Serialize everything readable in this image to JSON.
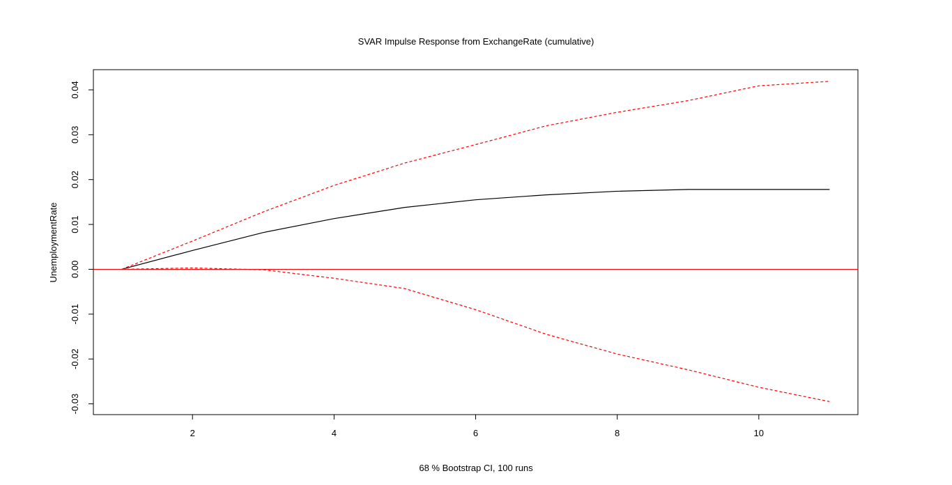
{
  "chart_data": {
    "type": "line",
    "title": "SVAR Impulse Response from ExchangeRate (cumulative)",
    "xlabel": "68 % Bootstrap CI,  100 runs",
    "ylabel": "UnemploymentRate",
    "xlim": [
      0.6,
      11.4
    ],
    "ylim": [
      -0.0324,
      0.0445
    ],
    "x": [
      1,
      2,
      3,
      4,
      5,
      6,
      7,
      8,
      9,
      10,
      11
    ],
    "xticks": [
      2,
      4,
      6,
      8,
      10
    ],
    "xtick_labels": [
      "2",
      "4",
      "6",
      "8",
      "10"
    ],
    "yticks": [
      -0.03,
      -0.02,
      -0.01,
      0.0,
      0.01,
      0.02,
      0.03,
      0.04
    ],
    "ytick_labels": [
      "-0.03",
      "-0.02",
      "-0.01",
      "0.00",
      "0.01",
      "0.02",
      "0.03",
      "0.04"
    ],
    "grid": false,
    "zero_line": {
      "value": 0.0,
      "color": "#ff0000"
    },
    "series": [
      {
        "values": [
          0.0,
          0.0042,
          0.0082,
          0.0113,
          0.0138,
          0.0155,
          0.0166,
          0.0174,
          0.0178,
          0.0178,
          0.0178
        ],
        "color": "#000000",
        "style": "solid"
      },
      {
        "values": [
          0.0,
          0.0063,
          0.0128,
          0.0187,
          0.0237,
          0.0278,
          0.032,
          0.035,
          0.0376,
          0.0409,
          0.0419
        ],
        "color": "#ff0000",
        "style": "dashed"
      },
      {
        "values": [
          0.0,
          0.0003,
          -0.0001,
          -0.002,
          -0.0043,
          -0.009,
          -0.0145,
          -0.0189,
          -0.0224,
          -0.0263,
          -0.0295
        ],
        "color": "#ff0000",
        "style": "dashed"
      }
    ]
  }
}
